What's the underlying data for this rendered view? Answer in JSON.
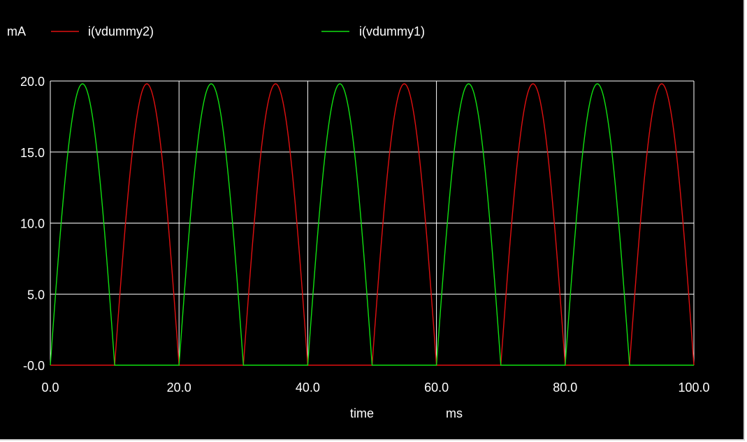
{
  "chart_data": {
    "type": "line",
    "y_unit_label": "mA",
    "xlabel": "time",
    "x_unit_label": "ms",
    "xlim": [
      0,
      100
    ],
    "ylim": [
      0,
      20
    ],
    "x_ticks": [
      "0.0",
      "20.0",
      "40.0",
      "60.0",
      "80.0",
      "100.0"
    ],
    "x_tick_values": [
      0,
      20,
      40,
      60,
      80,
      100
    ],
    "y_ticks": [
      "-0.0",
      "5.0",
      "10.0",
      "15.0",
      "20.0"
    ],
    "y_tick_values": [
      0,
      5,
      10,
      15,
      20
    ],
    "grid": true,
    "background": "#000000",
    "grid_color": "#ffffff",
    "series": [
      {
        "name": "i(vdummy2)",
        "color": "#e01010",
        "shape": "half-wave rectified sine",
        "period_ms": 20,
        "positive_half_from_ms": 10,
        "peak": 19.8
      },
      {
        "name": "i(vdummy1)",
        "color": "#10e010",
        "shape": "half-wave rectified sine",
        "period_ms": 20,
        "positive_half_from_ms": 0,
        "peak": 19.8
      }
    ]
  }
}
